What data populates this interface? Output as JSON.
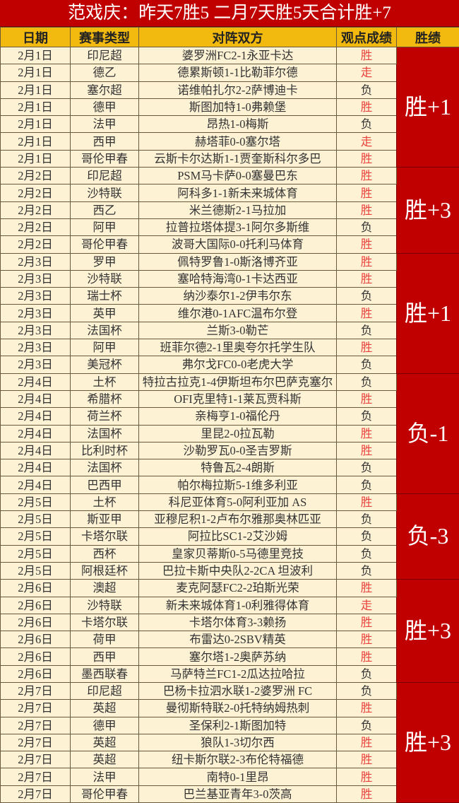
{
  "title": "范戏庆：昨天7胜5 二月7天胜5天合计胜+7",
  "colors": {
    "title_bg": "#c00000",
    "header_bg": "#f2b90f",
    "cell_bg": "#fdf2d4",
    "win_text": "#e8413c",
    "score_bg": "#c00000"
  },
  "headers": [
    "日期",
    "赛事类型",
    "对阵双方",
    "观点成绩",
    "胜绩"
  ],
  "groups": [
    {
      "score": "胜+1",
      "rows": [
        [
          "2月1日",
          "印尼超",
          "婆罗洲FC2-1永亚卡达",
          "胜"
        ],
        [
          "2月1日",
          "德乙",
          "德累斯顿1-1比勒菲尔德",
          "走"
        ],
        [
          "2月1日",
          "塞尔超",
          "诺维帕扎尔2-2萨博迪卡",
          "负"
        ],
        [
          "2月1日",
          "德甲",
          "斯图加特1-0弗赖堡",
          "胜"
        ],
        [
          "2月1日",
          "法甲",
          "昂热1-0梅斯",
          "负"
        ],
        [
          "2月1日",
          "西甲",
          "赫塔菲0-0塞尔塔",
          "走"
        ],
        [
          "2月1日",
          "哥伦甲春",
          "云斯卡尔达斯1-1贾奎斯科尔多巴",
          "胜"
        ]
      ]
    },
    {
      "score": "胜+3",
      "rows": [
        [
          "2月2日",
          "印尼超",
          "PSM马卡萨0-0塞曼巴东",
          "胜"
        ],
        [
          "2月2日",
          "沙特联",
          "阿科多1-1新未来城体育",
          "胜"
        ],
        [
          "2月2日",
          "西乙",
          "米兰德斯2-1马拉加",
          "胜"
        ],
        [
          "2月2日",
          "阿甲",
          "拉普拉塔体提3-1阿尔多斯维",
          "负"
        ],
        [
          "2月2日",
          "哥伦甲春",
          "波哥大国际0-0托利马体育",
          "胜"
        ]
      ]
    },
    {
      "score": "胜+1",
      "rows": [
        [
          "2月3日",
          "罗甲",
          "佩特罗鲁1-0斯洛博齐亚",
          "胜"
        ],
        [
          "2月3日",
          "沙特联",
          "塞哈特海湾0-1卡达西亚",
          "胜"
        ],
        [
          "2月3日",
          "瑞士杯",
          "纳沙泰尔1-2伊韦尔东",
          "负"
        ],
        [
          "2月3日",
          "英甲",
          "维尔港0-1AFC温布尔登",
          "胜"
        ],
        [
          "2月3日",
          "法国杯",
          "兰斯3-0勒芒",
          "负"
        ],
        [
          "2月3日",
          "阿甲",
          "班菲尔德2-1里奥夸尔托学生队",
          "胜"
        ],
        [
          "2月3日",
          "美冠杯",
          "弗尔戈FC0-0老虎大学",
          "负"
        ]
      ]
    },
    {
      "score": "负-1",
      "rows": [
        [
          "2月4日",
          "土杯",
          "特拉古拉克1-4伊斯坦布尔巴萨克塞尔",
          "负"
        ],
        [
          "2月4日",
          "希腊杯",
          "OFI克里特1-1莱瓦贾科斯",
          "胜"
        ],
        [
          "2月4日",
          "荷兰杯",
          "亲梅亨1-0福伦丹",
          "负"
        ],
        [
          "2月4日",
          "法国杯",
          "里昆2-0拉瓦勒",
          "胜"
        ],
        [
          "2月4日",
          "比利时杯",
          "沙勒罗瓦0-0圣吉罗斯",
          "胜"
        ],
        [
          "2月4日",
          "法国杯",
          "特鲁瓦2-4朗斯",
          "负"
        ],
        [
          "2月4日",
          "巴西甲",
          "帕尔梅拉斯5-1维多利亚",
          "负"
        ]
      ]
    },
    {
      "score": "负-3",
      "rows": [
        [
          "2月5日",
          "土杯",
          "科尼亚体育5-0阿利亚加 AS",
          "胜"
        ],
        [
          "2月5日",
          "斯亚甲",
          "亚穆尼积1-2卢布尔雅那奥林匹亚",
          "负"
        ],
        [
          "2月5日",
          "卡塔尔联",
          "阿拉比SC1-2艾沙姆",
          "负"
        ],
        [
          "2月5日",
          "西杯",
          "皇家贝蒂斯0-5马德里竞技",
          "负"
        ],
        [
          "2月5日",
          "阿根廷杯",
          "巴拉卡斯中央队2-2CA 坦波利",
          "负"
        ]
      ]
    },
    {
      "score": "胜+3",
      "rows": [
        [
          "2月6日",
          "澳超",
          "麦克阿瑟FC2-2珀斯光荣",
          "胜"
        ],
        [
          "2月6日",
          "沙特联",
          "新未来城体育1-0利雅得体育",
          "走"
        ],
        [
          "2月6日",
          "卡塔尔联",
          "卡塔尔体育3-3赖扬",
          "胜"
        ],
        [
          "2月6日",
          "荷甲",
          "布雷达0-2SBV精英",
          "胜"
        ],
        [
          "2月6日",
          "西甲",
          "塞尔塔1-2奥萨苏纳",
          "胜"
        ],
        [
          "2月6日",
          "墨西联春",
          "马萨特兰FC1-2瓜达拉哈拉",
          "负"
        ]
      ]
    },
    {
      "score": "胜+3",
      "rows": [
        [
          "2月7日",
          "印尼超",
          "巴杨卡拉泗水联1-2婆罗洲 FC",
          "负"
        ],
        [
          "2月7日",
          "英超",
          "曼彻斯特联2-0托特纳姆热刺",
          "胜"
        ],
        [
          "2月7日",
          "德甲",
          "圣保利2-1斯图加特",
          "负"
        ],
        [
          "2月7日",
          "英超",
          "狼队1-3切尔西",
          "胜"
        ],
        [
          "2月7日",
          "英超",
          "纽卡斯尔联2-3布伦特福德",
          "胜"
        ],
        [
          "2月7日",
          "法甲",
          "南特0-1里昂",
          "胜"
        ],
        [
          "2月7日",
          "哥伦甲春",
          "巴兰基亚青年3-0茨高",
          "胜"
        ]
      ]
    }
  ]
}
